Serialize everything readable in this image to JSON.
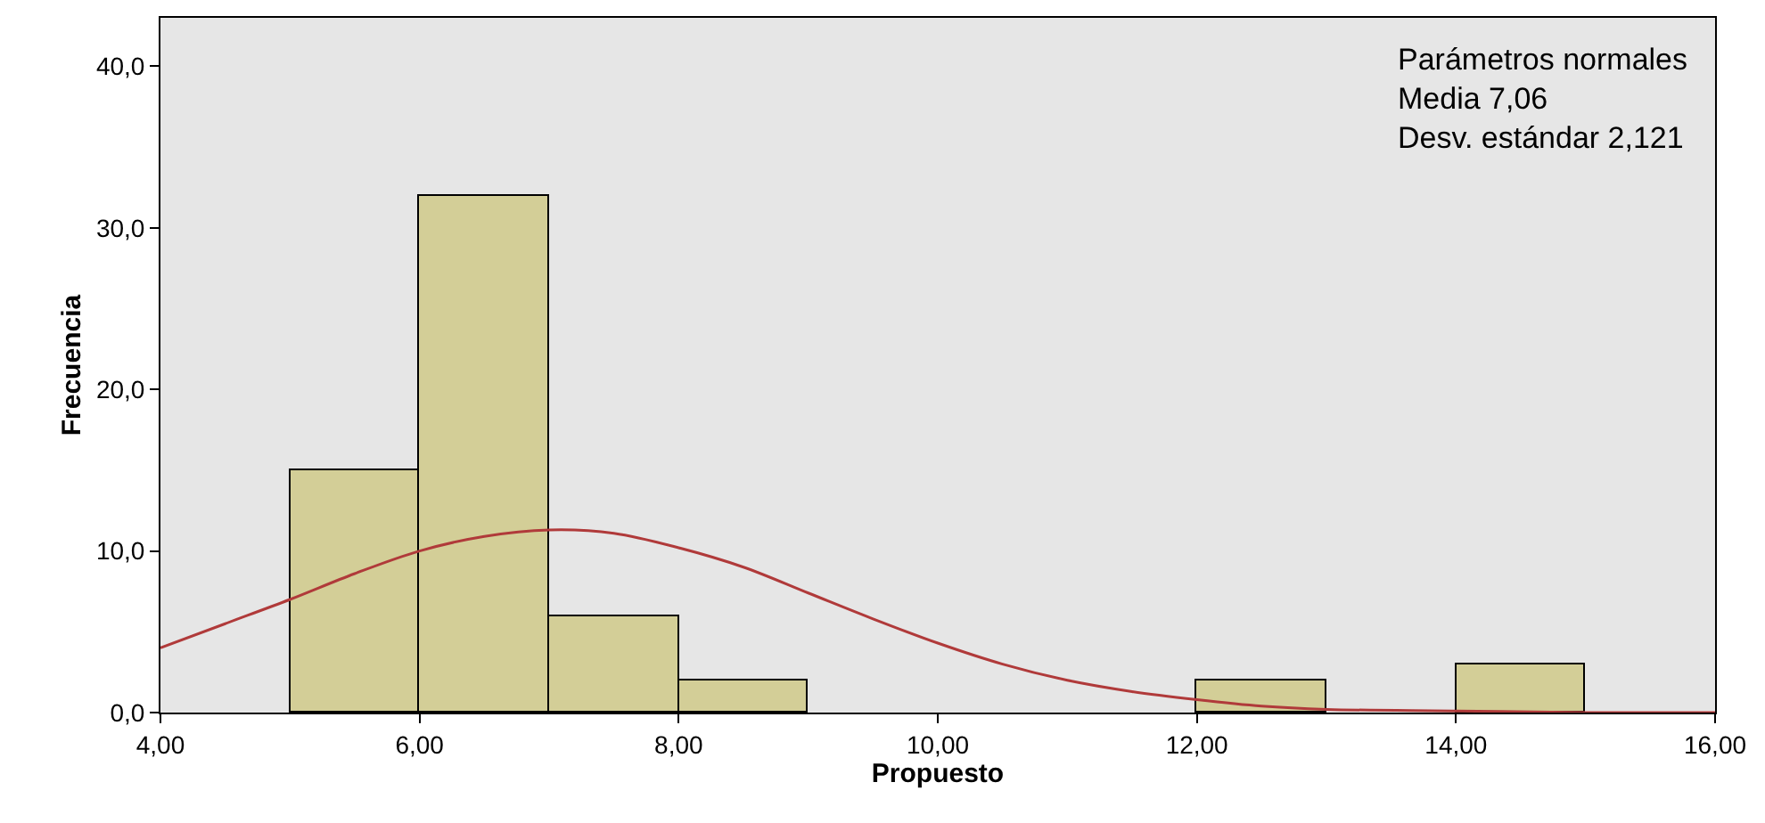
{
  "chart_data": {
    "type": "histogram",
    "xlabel": "Propuesto",
    "ylabel": "Frecuencia",
    "bins": [
      5,
      6,
      7,
      8,
      9,
      10,
      11,
      12,
      13,
      14,
      15
    ],
    "values": [
      15,
      32,
      6,
      2,
      0,
      0,
      0,
      2,
      0,
      3
    ],
    "color": "#d3ce97",
    "series": [
      {
        "type": "line",
        "color": "#b03a3a",
        "x": [
          4,
          4.5,
          5,
          5.5,
          6,
          6.5,
          7,
          7.5,
          8,
          8.5,
          9,
          9.5,
          10,
          10.5,
          11,
          11.5,
          12,
          12.5,
          13,
          14,
          15,
          16
        ],
        "values": [
          4.0,
          5.5,
          7.0,
          8.6,
          10.0,
          10.9,
          11.3,
          11.1,
          10.2,
          9.0,
          7.4,
          5.8,
          4.3,
          3.0,
          2.0,
          1.3,
          0.8,
          0.4,
          0.2,
          0.1,
          0.0,
          0.0
        ]
      }
    ],
    "xlim": [
      4,
      16
    ],
    "xticks": [
      {
        "value": 4,
        "label": "4,00"
      },
      {
        "value": 6,
        "label": "6,00"
      },
      {
        "value": 8,
        "label": "8,00"
      },
      {
        "value": 10,
        "label": "10,00"
      },
      {
        "value": 12,
        "label": "12,00"
      },
      {
        "value": 14,
        "label": "14,00"
      },
      {
        "value": 16,
        "label": "16,00"
      }
    ],
    "ylim": [
      0,
      43
    ],
    "yticks": [
      {
        "value": 0,
        "label": "0,0"
      },
      {
        "value": 10,
        "label": "10,0"
      },
      {
        "value": 20,
        "label": "20,0"
      },
      {
        "value": 30,
        "label": "30,0"
      },
      {
        "value": 40,
        "label": "40,0"
      }
    ],
    "annotations": [
      "Parámetros normales",
      "Media 7,06",
      "Desv. estándar 2,121"
    ]
  }
}
